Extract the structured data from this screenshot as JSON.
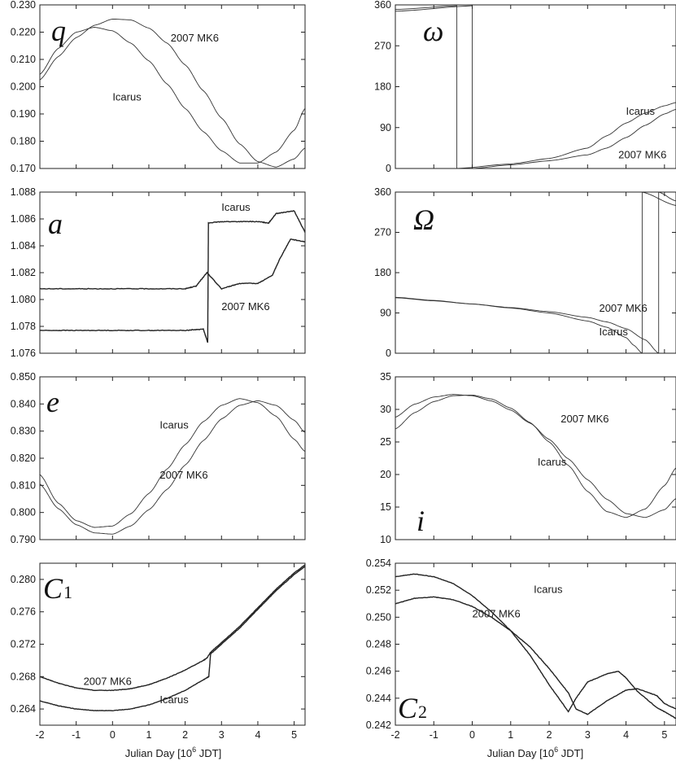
{
  "figure": {
    "x_axis_label_main": "Julian Day [10",
    "x_axis_label_sup": "6",
    "x_axis_label_tail": " JDT]",
    "x_ticks": [
      -2,
      -1,
      0,
      1,
      2,
      3,
      4,
      5
    ],
    "x_tick_labels": [
      "-2",
      "-1",
      "0",
      "1",
      "2",
      "3",
      "4",
      "5"
    ]
  },
  "chart_data": [
    {
      "id": "q",
      "type": "line",
      "symbol": "q",
      "subscript": "",
      "ylim": [
        0.17,
        0.23
      ],
      "yticks": [
        0.17,
        0.18,
        0.19,
        0.2,
        0.21,
        0.22,
        0.23
      ],
      "ytick_labels": [
        "0.170",
        "0.180",
        "0.190",
        "0.200",
        "0.210",
        "0.220",
        "0.230"
      ],
      "series": [
        {
          "name": "2007 MK6",
          "x": [
            -2,
            -1.5,
            -1,
            -0.5,
            0,
            0.5,
            1,
            1.5,
            2,
            2.5,
            3,
            3.5,
            4,
            4.5,
            5,
            5.3
          ],
          "y": [
            0.2025,
            0.211,
            0.218,
            0.2225,
            0.2248,
            0.2245,
            0.2215,
            0.216,
            0.208,
            0.1985,
            0.1885,
            0.179,
            0.1725,
            0.1705,
            0.1735,
            0.1775
          ]
        },
        {
          "name": "Icarus",
          "x": [
            -2,
            -1.5,
            -1,
            -0.5,
            0,
            0.5,
            1,
            1.5,
            2,
            2.5,
            3,
            3.5,
            4,
            4.5,
            5,
            5.3
          ],
          "y": [
            0.2045,
            0.214,
            0.22,
            0.2218,
            0.2205,
            0.216,
            0.2095,
            0.201,
            0.192,
            0.1835,
            0.1765,
            0.172,
            0.172,
            0.176,
            0.184,
            0.192
          ]
        }
      ],
      "annotations": [
        {
          "text": "2007 MK6",
          "x": 1.6,
          "y": 0.2165
        },
        {
          "text": "Icarus",
          "x": 0.0,
          "y": 0.195
        }
      ]
    },
    {
      "id": "omega",
      "type": "line",
      "symbol": "ω",
      "subscript": "",
      "ylim": [
        0,
        360
      ],
      "yticks": [
        0,
        90,
        180,
        270,
        360
      ],
      "ytick_labels": [
        "0",
        "90",
        "180",
        "270",
        "360"
      ],
      "series": [
        {
          "name": "Icarus",
          "x": [
            -2,
            -0.4,
            -0.4,
            1,
            2,
            3,
            3.5,
            4,
            4.5,
            5,
            5.3
          ],
          "y": [
            350,
            358,
            0,
            10,
            22,
            45,
            72,
            100,
            122,
            138,
            145
          ]
        },
        {
          "name": "2007 MK6",
          "x": [
            -2,
            0.0,
            0.0,
            1,
            2,
            3,
            3.5,
            4,
            4.5,
            5,
            5.3
          ],
          "y": [
            346,
            358,
            0,
            8,
            17,
            30,
            45,
            68,
            95,
            120,
            130
          ]
        }
      ],
      "annotations": [
        {
          "text": "Icarus",
          "x": 4.0,
          "y": 118
        },
        {
          "text": "2007 MK6",
          "x": 3.8,
          "y": 22
        }
      ]
    },
    {
      "id": "a",
      "type": "line",
      "symbol": "a",
      "subscript": "",
      "ylim": [
        1.076,
        1.088
      ],
      "yticks": [
        1.076,
        1.078,
        1.08,
        1.082,
        1.084,
        1.086,
        1.088
      ],
      "ytick_labels": [
        "1.076",
        "1.078",
        "1.080",
        "1.082",
        "1.084",
        "1.086",
        "1.088"
      ],
      "series": [
        {
          "name": "Icarus",
          "x": [
            -2,
            -1,
            0,
            1,
            2,
            2.5,
            2.62,
            2.64,
            3,
            3.5,
            4,
            4.3,
            4.5,
            5,
            5.3
          ],
          "y": [
            1.0777,
            1.0777,
            1.0777,
            1.0777,
            1.0777,
            1.0778,
            1.0768,
            1.0857,
            1.0858,
            1.0858,
            1.0858,
            1.0857,
            1.0864,
            1.0866,
            1.085
          ]
        },
        {
          "name": "2007 MK6",
          "x": [
            -2,
            -1,
            0,
            1,
            2,
            2.3,
            2.6,
            3,
            3.5,
            4,
            4.4,
            4.6,
            4.9,
            5.3
          ],
          "y": [
            1.0808,
            1.0808,
            1.0808,
            1.0808,
            1.0808,
            1.081,
            1.082,
            1.0808,
            1.0812,
            1.0812,
            1.0818,
            1.083,
            1.0845,
            1.0843
          ]
        }
      ],
      "annotations": [
        {
          "text": "Icarus",
          "x": 3.0,
          "y": 1.0866
        },
        {
          "text": "2007 MK6",
          "x": 3.0,
          "y": 1.0792
        }
      ]
    },
    {
      "id": "Omega",
      "type": "line",
      "symbol": "Ω",
      "subscript": "",
      "ylim": [
        0,
        360
      ],
      "yticks": [
        0,
        90,
        180,
        270,
        360
      ],
      "ytick_labels": [
        "0",
        "90",
        "180",
        "270",
        "360"
      ],
      "series": [
        {
          "name": "2007 MK6",
          "x": [
            -2,
            -1,
            0,
            1,
            2,
            3,
            3.5,
            4,
            4.5,
            4.85,
            4.85,
            5.3
          ],
          "y": [
            125,
            118,
            110,
            102,
            93,
            80,
            70,
            55,
            30,
            0,
            360,
            340
          ]
        },
        {
          "name": "Icarus",
          "x": [
            -2,
            -1,
            0,
            1,
            2,
            3,
            3.5,
            4,
            4.2,
            4.42,
            4.42,
            5.3
          ],
          "y": [
            124,
            117,
            110,
            101,
            90,
            72,
            58,
            35,
            18,
            0,
            360,
            330
          ]
        }
      ],
      "annotations": [
        {
          "text": "2007 MK6",
          "x": 3.3,
          "y": 93
        },
        {
          "text": "Icarus",
          "x": 3.3,
          "y": 40
        }
      ]
    },
    {
      "id": "e",
      "type": "line",
      "symbol": "e",
      "subscript": "",
      "ylim": [
        0.79,
        0.85
      ],
      "yticks": [
        0.79,
        0.8,
        0.81,
        0.82,
        0.83,
        0.84,
        0.85
      ],
      "ytick_labels": [
        "0.790",
        "0.800",
        "0.810",
        "0.820",
        "0.830",
        "0.840",
        "0.850"
      ],
      "series": [
        {
          "name": "Icarus",
          "x": [
            -2,
            -1.5,
            -1,
            -0.5,
            0,
            0.5,
            1,
            1.5,
            2,
            2.5,
            3,
            3.5,
            4,
            4.5,
            5,
            5.3
          ],
          "y": [
            0.814,
            0.8035,
            0.797,
            0.7945,
            0.795,
            0.7995,
            0.807,
            0.816,
            0.825,
            0.8335,
            0.8395,
            0.842,
            0.8405,
            0.8355,
            0.827,
            0.8225
          ]
        },
        {
          "name": "2007 MK6",
          "x": [
            -2,
            -1.5,
            -1,
            -0.5,
            0,
            0.5,
            1,
            1.5,
            2,
            2.5,
            3,
            3.5,
            4,
            4.5,
            5,
            5.3
          ],
          "y": [
            0.8105,
            0.8015,
            0.7955,
            0.7925,
            0.792,
            0.795,
            0.801,
            0.8085,
            0.8175,
            0.8265,
            0.8345,
            0.8395,
            0.8412,
            0.8395,
            0.834,
            0.8295
          ]
        }
      ],
      "annotations": [
        {
          "text": "Icarus",
          "x": 1.3,
          "y": 0.831
        },
        {
          "text": "2007 MK6",
          "x": 1.3,
          "y": 0.8125
        }
      ]
    },
    {
      "id": "i",
      "type": "line",
      "symbol": "i",
      "subscript": "",
      "ylim": [
        10,
        35
      ],
      "yticks": [
        10,
        15,
        20,
        25,
        30,
        35
      ],
      "ytick_labels": [
        "10",
        "15",
        "20",
        "25",
        "30",
        "35"
      ],
      "series": [
        {
          "name": "2007 MK6",
          "x": [
            -2,
            -1.5,
            -1,
            -0.5,
            0,
            0.5,
            1,
            1.5,
            2,
            2.5,
            3,
            3.5,
            4,
            4.5,
            5,
            5.3
          ],
          "y": [
            28.8,
            30.8,
            31.9,
            32.3,
            32.1,
            31.3,
            29.9,
            27.9,
            25.4,
            22.4,
            19.2,
            16.2,
            14.0,
            13.4,
            14.6,
            16.3
          ]
        },
        {
          "name": "Icarus",
          "x": [
            -2,
            -1.5,
            -1,
            -0.5,
            0,
            0.5,
            1,
            1.5,
            2,
            2.5,
            3,
            3.5,
            4,
            4.5,
            5,
            5.3
          ],
          "y": [
            27.0,
            29.5,
            31.2,
            32.1,
            32.2,
            31.6,
            30.2,
            28.0,
            25.0,
            21.4,
            17.4,
            14.3,
            13.4,
            14.7,
            18.3,
            21.0
          ]
        }
      ],
      "annotations": [
        {
          "text": "2007 MK6",
          "x": 2.3,
          "y": 28.0
        },
        {
          "text": "Icarus",
          "x": 1.7,
          "y": 21.4
        }
      ]
    },
    {
      "id": "C1",
      "type": "line",
      "symbol": "C",
      "subscript": "1",
      "ylim": [
        0.262,
        0.282
      ],
      "yticks": [
        0.264,
        0.268,
        0.272,
        0.276,
        0.28
      ],
      "ytick_labels": [
        "0.264",
        "0.268",
        "0.272",
        "0.276",
        "0.280"
      ],
      "series": [
        {
          "name": "2007 MK6",
          "x": [
            -2,
            -1.5,
            -1,
            -0.5,
            0,
            0.5,
            1,
            1.5,
            2,
            2.5,
            2.6,
            2.7,
            3,
            3.5,
            4,
            4.5,
            5,
            5.3
          ],
          "y": [
            0.268,
            0.2672,
            0.2666,
            0.2663,
            0.2663,
            0.2665,
            0.267,
            0.2678,
            0.2688,
            0.27,
            0.2703,
            0.271,
            0.2722,
            0.2742,
            0.2765,
            0.2788,
            0.2808,
            0.2818
          ]
        },
        {
          "name": "Icarus",
          "x": [
            -2,
            -1.5,
            -1,
            -0.5,
            0,
            0.5,
            1,
            1.5,
            2,
            2.5,
            2.65,
            2.7,
            3,
            3.5,
            4,
            4.5,
            5,
            5.3
          ],
          "y": [
            0.265,
            0.2644,
            0.264,
            0.2638,
            0.2638,
            0.264,
            0.2645,
            0.2653,
            0.2663,
            0.2676,
            0.268,
            0.2708,
            0.272,
            0.274,
            0.2763,
            0.2786,
            0.2806,
            0.2816
          ]
        }
      ],
      "annotations": [
        {
          "text": "2007 MK6",
          "x": -0.8,
          "y": 0.267
        },
        {
          "text": "Icarus",
          "x": 1.3,
          "y": 0.2647
        }
      ]
    },
    {
      "id": "C2",
      "type": "line",
      "symbol": "C",
      "subscript": "2",
      "ylim": [
        0.242,
        0.254
      ],
      "yticks": [
        0.242,
        0.244,
        0.246,
        0.248,
        0.25,
        0.252,
        0.254
      ],
      "ytick_labels": [
        "0.242",
        "0.244",
        "0.246",
        "0.248",
        "0.250",
        "0.252",
        "0.254"
      ],
      "series": [
        {
          "name": "Icarus",
          "x": [
            -2,
            -1.5,
            -1,
            -0.5,
            0,
            0.5,
            1,
            1.5,
            2,
            2.5,
            2.7,
            3,
            3.5,
            3.8,
            4,
            4.3,
            4.8,
            5,
            5.3
          ],
          "y": [
            0.253,
            0.2532,
            0.253,
            0.2525,
            0.2516,
            0.2504,
            0.249,
            0.2472,
            0.245,
            0.243,
            0.244,
            0.2452,
            0.2458,
            0.246,
            0.2455,
            0.2445,
            0.2433,
            0.243,
            0.2425
          ]
        },
        {
          "name": "2007 MK6",
          "x": [
            -2,
            -1.5,
            -1,
            -0.5,
            0,
            0.5,
            1,
            1.5,
            2,
            2.5,
            2.7,
            3,
            3.5,
            4,
            4.3,
            4.8,
            5,
            5.3
          ],
          "y": [
            0.251,
            0.2514,
            0.2515,
            0.2513,
            0.2508,
            0.25,
            0.249,
            0.2478,
            0.2462,
            0.2444,
            0.2432,
            0.2428,
            0.2438,
            0.2446,
            0.2447,
            0.2442,
            0.2436,
            0.2432
          ]
        }
      ],
      "annotations": [
        {
          "text": "Icarus",
          "x": 1.6,
          "y": 0.2518
        },
        {
          "text": "2007 MK6",
          "x": 0.0,
          "y": 0.25
        }
      ]
    }
  ]
}
